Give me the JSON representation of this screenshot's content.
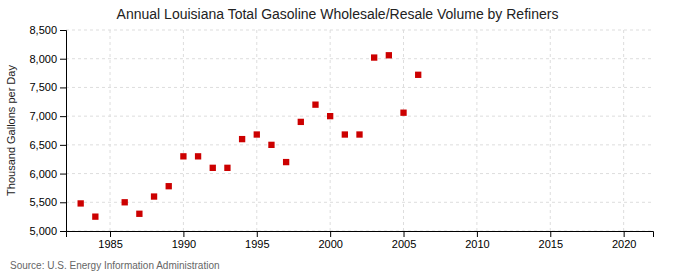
{
  "chart_data": {
    "type": "scatter",
    "title": "Annual Louisiana Total Gasoline Wholesale/Resale Volume by Refiners",
    "ylabel": "Thousand Gallons per Day",
    "source": "Source: U.S. Energy Information Administration",
    "x": [
      1983,
      1984,
      1986,
      1987,
      1988,
      1989,
      1990,
      1991,
      1992,
      1993,
      1994,
      1995,
      1996,
      1997,
      1998,
      1999,
      2000,
      2001,
      2002,
      2003,
      2004,
      2005,
      2006
    ],
    "values": [
      5480,
      5250,
      5500,
      5300,
      5600,
      5780,
      6300,
      6300,
      6100,
      6100,
      6600,
      6680,
      6500,
      6200,
      6900,
      7200,
      7000,
      6680,
      6680,
      8020,
      8060,
      7060,
      7720
    ],
    "color": "#cc0000",
    "marker": "square",
    "xlim": [
      1982,
      2022
    ],
    "ylim": [
      5000,
      8500
    ],
    "xticks": [
      1985,
      1990,
      1995,
      2000,
      2005,
      2010,
      2015,
      2020
    ],
    "yticks": [
      {
        "value": 5000,
        "label": "5,000"
      },
      {
        "value": 5500,
        "label": "5,500"
      },
      {
        "value": 6000,
        "label": "6,000"
      },
      {
        "value": 6500,
        "label": "6,500"
      },
      {
        "value": 7000,
        "label": "7,000"
      },
      {
        "value": 7500,
        "label": "7,500"
      },
      {
        "value": 8000,
        "label": "8,000"
      },
      {
        "value": 8500,
        "label": "8,500"
      }
    ],
    "grid": true
  }
}
